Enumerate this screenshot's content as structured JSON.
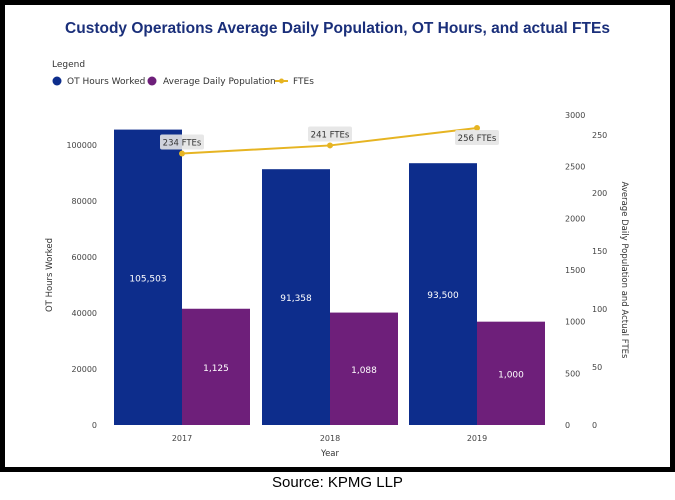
{
  "chart_data": {
    "type": "bar",
    "title": "Custody Operations Average Daily Population, OT Hours, and actual FTEs",
    "legend_title": "Legend",
    "legend_position": "top-left",
    "categories": [
      "2017",
      "2018",
      "2019"
    ],
    "xlabel": "Year",
    "ylabel": "OT Hours Worked",
    "ylabel_right": "Average Daily Population and Actual FTEs",
    "ylim": [
      0,
      110000
    ],
    "yticks": [
      0,
      20000,
      40000,
      60000,
      80000,
      100000
    ],
    "ylim_right_adp": [
      0,
      3000
    ],
    "yticks_right_adp": [
      0,
      500,
      1000,
      1500,
      2000,
      2500,
      3000
    ],
    "ylim_right_fte": [
      0,
      250
    ],
    "yticks_right_fte": [
      0,
      50,
      100,
      150,
      200,
      250
    ],
    "grid": false,
    "series": [
      {
        "name": "OT Hours Worked",
        "type": "bar",
        "axis": "left",
        "color": "#0d2d8c",
        "values": [
          105503,
          91358,
          93500
        ],
        "labels": [
          "105,503",
          "91,358",
          "93,500"
        ]
      },
      {
        "name": "Average Daily Population",
        "type": "bar",
        "axis": "right-adp",
        "color": "#6e1f7a",
        "values": [
          1125,
          1088,
          1000
        ],
        "labels": [
          "1,125",
          "1,088",
          "1,000"
        ]
      },
      {
        "name": "FTEs",
        "type": "line",
        "axis": "right-fte",
        "color": "#e6b422",
        "values": [
          234,
          241,
          256
        ],
        "labels": [
          "234 FTEs",
          "241 FTEs",
          "256 FTEs"
        ]
      }
    ]
  },
  "source": "Source: KPMG LLP"
}
